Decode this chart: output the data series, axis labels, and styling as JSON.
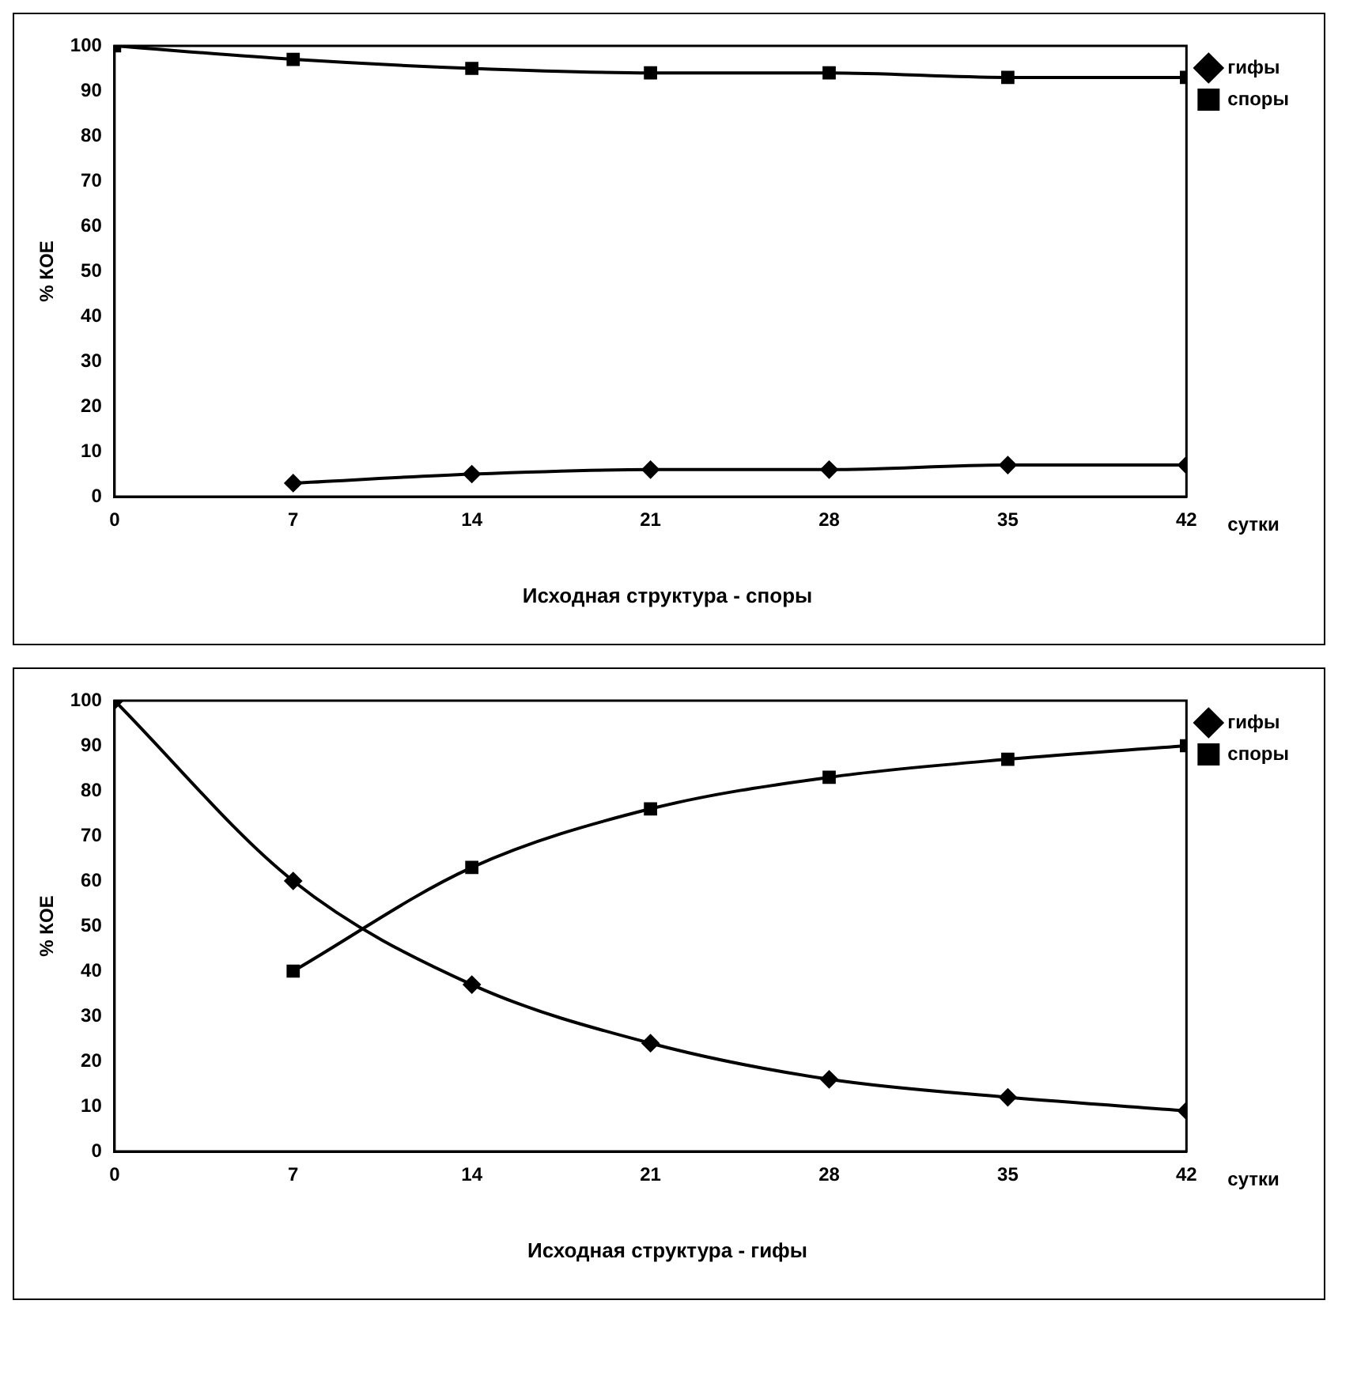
{
  "chart_data": [
    {
      "type": "line",
      "title": "Исходная структура - споры",
      "xlabel": "сутки",
      "ylabel": "% КОЕ",
      "x": [
        0,
        7,
        14,
        21,
        28,
        35,
        42
      ],
      "xlim": [
        0,
        42
      ],
      "xticks": [
        0,
        7,
        14,
        21,
        28,
        35,
        42
      ],
      "ylim": [
        0,
        100
      ],
      "yticks": [
        0,
        10,
        20,
        30,
        40,
        50,
        60,
        70,
        80,
        90,
        100
      ],
      "grid": false,
      "legend": "top right",
      "series": [
        {
          "name": "гифы",
          "color": "#000000",
          "marker": "diamond",
          "values": [
            null,
            3,
            5,
            6,
            6,
            7,
            7
          ]
        },
        {
          "name": "споры",
          "color": "#000000",
          "marker": "square",
          "values": [
            100,
            97,
            95,
            94,
            94,
            93,
            93
          ]
        }
      ]
    },
    {
      "type": "line",
      "title": "Исходная структура - гифы",
      "xlabel": "сутки",
      "ylabel": "% КОЕ",
      "x": [
        0,
        7,
        14,
        21,
        28,
        35,
        42
      ],
      "xlim": [
        0,
        42
      ],
      "xticks": [
        0,
        7,
        14,
        21,
        28,
        35,
        42
      ],
      "ylim": [
        0,
        100
      ],
      "yticks": [
        0,
        10,
        20,
        30,
        40,
        50,
        60,
        70,
        80,
        90,
        100
      ],
      "grid": false,
      "legend": "top right",
      "series": [
        {
          "name": "гифы",
          "color": "#000000",
          "marker": "diamond",
          "values": [
            100,
            60,
            37,
            24,
            16,
            12,
            9
          ]
        },
        {
          "name": "споры",
          "color": "#000000",
          "marker": "square",
          "values": [
            null,
            40,
            63,
            76,
            83,
            87,
            90
          ]
        }
      ]
    }
  ]
}
